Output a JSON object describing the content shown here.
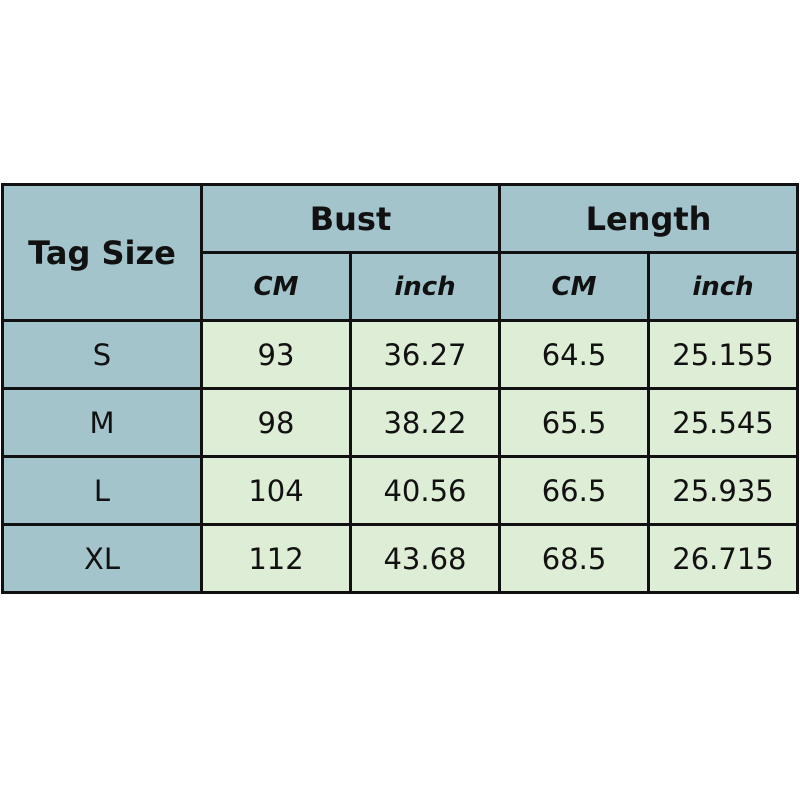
{
  "header": {
    "tag_size": "Tag Size",
    "groups": [
      {
        "label": "Bust",
        "units": [
          "CM",
          "inch"
        ]
      },
      {
        "label": "Length",
        "units": [
          "CM",
          "inch"
        ]
      }
    ]
  },
  "rows": [
    {
      "size": "S",
      "values": [
        "93",
        "36.27",
        "64.5",
        "25.155"
      ]
    },
    {
      "size": "M",
      "values": [
        "98",
        "38.22",
        "65.5",
        "25.545"
      ]
    },
    {
      "size": "L",
      "values": [
        "104",
        "40.56",
        "66.5",
        "25.935"
      ]
    },
    {
      "size": "XL",
      "values": [
        "112",
        "43.68",
        "68.5",
        "26.715"
      ]
    }
  ],
  "colors": {
    "header_bg": "#a4c4cb",
    "cell_bg": "#deeed6",
    "border": "#111111"
  }
}
